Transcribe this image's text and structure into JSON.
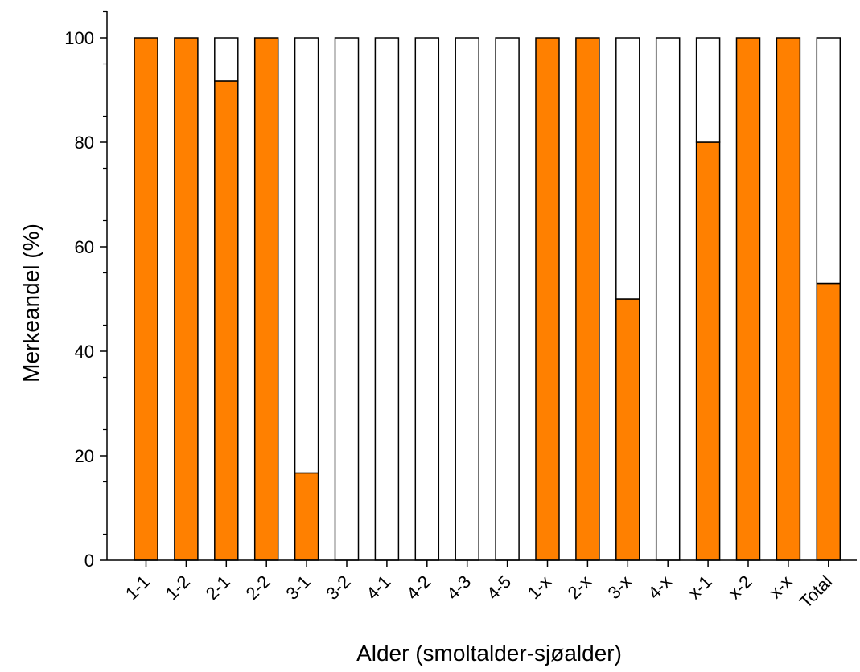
{
  "chart_data": {
    "type": "bar",
    "stacked": true,
    "title": "",
    "xlabel": "Alder (smoltalder-sjøalder)",
    "ylabel": "Merkeandel (%)",
    "ylim": [
      0,
      100
    ],
    "yticks": [
      0,
      20,
      40,
      60,
      80,
      100
    ],
    "grid": false,
    "categories": [
      "1-1",
      "1-2",
      "2-1",
      "2-2",
      "3-1",
      "3-2",
      "4-1",
      "4-2",
      "4-3",
      "4-5",
      "1-x",
      "2-x",
      "3-x",
      "4-x",
      "x-1",
      "x-2",
      "x-x",
      "Total"
    ],
    "series": [
      {
        "values": [
          100,
          100,
          91.7,
          100,
          16.7,
          0,
          0,
          0,
          0,
          0,
          100,
          100,
          50,
          0,
          80,
          100,
          100,
          53
        ],
        "color": "#ff8000"
      },
      {
        "values": [
          0,
          0,
          8.3,
          0,
          83.3,
          100,
          100,
          100,
          100,
          100,
          0,
          0,
          50,
          100,
          20,
          0,
          0,
          47
        ],
        "color": "#ffffff"
      }
    ]
  }
}
